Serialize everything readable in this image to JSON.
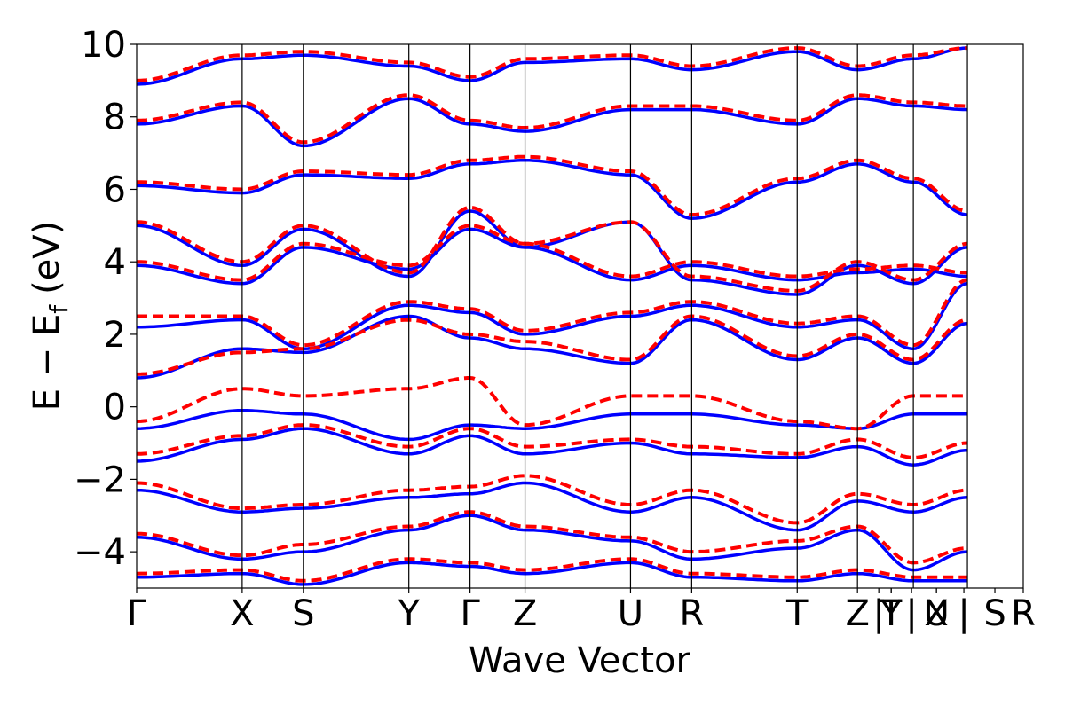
{
  "chart_data": {
    "type": "line",
    "title": "",
    "xlabel": "Wave Vector",
    "ylabel": "E − E_f (eV)",
    "ylabel_main": "E − E",
    "ylabel_sub": "f",
    "ylabel_unit": "(eV)",
    "ylim": [
      -5,
      10
    ],
    "xlim": [
      0,
      1
    ],
    "grid": false,
    "legend": "none",
    "y_ticks": [
      -4,
      -2,
      0,
      2,
      4,
      6,
      8,
      10
    ],
    "y_tick_labels": [
      "−4",
      "−2",
      "0",
      "2",
      "4",
      "6",
      "8",
      "10"
    ],
    "k_points": [
      {
        "label": "Γ",
        "x": 0.0
      },
      {
        "label": "X",
        "x": 0.119
      },
      {
        "label": "S",
        "x": 0.188
      },
      {
        "label": "Y",
        "x": 0.307
      },
      {
        "label": "Γ",
        "x": 0.376
      },
      {
        "label": "Z",
        "x": 0.438
      },
      {
        "label": "U",
        "x": 0.557
      },
      {
        "label": "R",
        "x": 0.626
      },
      {
        "label": "T",
        "x": 0.745
      },
      {
        "label": "Z",
        "x": 0.813
      },
      {
        "label": "|",
        "x": 0.837
      },
      {
        "label": "Y",
        "x": 0.851
      },
      {
        "label": "T",
        "x": 0.851
      },
      {
        "label": "|",
        "x": 0.874
      },
      {
        "label": "U",
        "x": 0.902
      },
      {
        "label": "X",
        "x": 0.902
      },
      {
        "label": "|",
        "x": 0.933
      },
      {
        "label": "S",
        "x": 0.968
      },
      {
        "label": "R",
        "x": 1.0
      }
    ],
    "segment_breaks": [
      0.119,
      0.188,
      0.307,
      0.376,
      0.438,
      0.557,
      0.626,
      0.745,
      0.813,
      0.876,
      0.937
    ],
    "colors": {
      "series_a": "#0000ff",
      "series_b": "#ff0000"
    },
    "series": [
      {
        "style": "solid",
        "color": "#0000ff",
        "nodes": [
          -0.6,
          -0.1,
          -0.2,
          -0.9,
          -0.5,
          -0.6,
          -0.2,
          -0.2,
          -0.5,
          -0.6,
          -0.2,
          -0.2
        ]
      },
      {
        "style": "solid",
        "color": "#0000ff",
        "nodes": [
          0.8,
          1.6,
          1.5,
          2.5,
          1.9,
          1.6,
          1.2,
          2.4,
          1.3,
          1.9,
          1.2,
          2.3
        ]
      },
      {
        "style": "solid",
        "color": "#0000ff",
        "nodes": [
          2.2,
          2.4,
          1.6,
          2.8,
          2.6,
          2.0,
          2.5,
          2.8,
          2.2,
          2.4,
          1.6,
          3.4
        ]
      },
      {
        "style": "solid",
        "color": "#0000ff",
        "nodes": [
          3.9,
          3.4,
          4.4,
          3.8,
          4.9,
          4.4,
          5.1,
          3.5,
          3.1,
          3.9,
          3.4,
          4.4
        ]
      },
      {
        "style": "solid",
        "color": "#0000ff",
        "nodes": [
          5.0,
          3.9,
          4.9,
          3.6,
          5.4,
          4.4,
          3.5,
          3.9,
          3.5,
          3.7,
          3.8,
          3.6
        ]
      },
      {
        "style": "solid",
        "color": "#0000ff",
        "nodes": [
          6.1,
          5.9,
          6.4,
          6.3,
          6.7,
          6.8,
          6.4,
          5.2,
          6.2,
          6.7,
          6.2,
          5.3
        ]
      },
      {
        "style": "solid",
        "color": "#0000ff",
        "nodes": [
          7.8,
          8.3,
          7.2,
          8.5,
          7.8,
          7.6,
          8.2,
          8.2,
          7.8,
          8.5,
          8.3,
          8.2
        ]
      },
      {
        "style": "solid",
        "color": "#0000ff",
        "nodes": [
          8.9,
          9.6,
          9.7,
          9.4,
          9.0,
          9.5,
          9.6,
          9.3,
          9.8,
          9.3,
          9.6,
          9.9
        ]
      },
      {
        "style": "solid",
        "color": "#0000ff",
        "nodes": [
          -1.5,
          -0.9,
          -0.6,
          -1.3,
          -0.8,
          -1.3,
          -1.0,
          -1.3,
          -1.4,
          -1.1,
          -1.6,
          -1.2
        ]
      },
      {
        "style": "solid",
        "color": "#0000ff",
        "nodes": [
          -2.3,
          -2.9,
          -2.8,
          -2.5,
          -2.4,
          -2.1,
          -2.9,
          -2.5,
          -3.4,
          -2.6,
          -2.9,
          -2.5
        ]
      },
      {
        "style": "solid",
        "color": "#0000ff",
        "nodes": [
          -3.6,
          -4.2,
          -4.0,
          -3.4,
          -3.0,
          -3.4,
          -3.7,
          -4.2,
          -3.9,
          -3.4,
          -4.5,
          -4.0
        ]
      },
      {
        "style": "solid",
        "color": "#0000ff",
        "nodes": [
          -4.7,
          -4.6,
          -4.9,
          -4.3,
          -4.4,
          -4.6,
          -4.3,
          -4.7,
          -4.8,
          -4.6,
          -4.8,
          -4.8
        ]
      },
      {
        "style": "dashed",
        "color": "#ff0000",
        "nodes": [
          -0.4,
          0.5,
          0.3,
          0.5,
          0.8,
          -0.5,
          0.3,
          0.3,
          -0.4,
          -0.6,
          0.3,
          0.3
        ]
      },
      {
        "style": "dashed",
        "color": "#ff0000",
        "nodes": [
          0.9,
          1.5,
          1.6,
          2.4,
          2.0,
          1.8,
          1.3,
          2.5,
          1.4,
          2.0,
          1.3,
          2.4
        ]
      },
      {
        "style": "dashed",
        "color": "#ff0000",
        "nodes": [
          2.5,
          2.5,
          1.7,
          2.9,
          2.7,
          2.1,
          2.6,
          2.9,
          2.3,
          2.5,
          1.7,
          3.5
        ]
      },
      {
        "style": "dashed",
        "color": "#ff0000",
        "nodes": [
          4.0,
          3.5,
          4.5,
          3.9,
          5.0,
          4.5,
          5.1,
          3.6,
          3.2,
          4.0,
          3.5,
          4.5
        ]
      },
      {
        "style": "dashed",
        "color": "#ff0000",
        "nodes": [
          5.1,
          4.0,
          5.0,
          3.7,
          5.5,
          4.5,
          3.6,
          4.0,
          3.6,
          3.8,
          3.9,
          3.7
        ]
      },
      {
        "style": "dashed",
        "color": "#ff0000",
        "nodes": [
          6.2,
          6.0,
          6.5,
          6.4,
          6.8,
          6.9,
          6.5,
          5.3,
          6.3,
          6.8,
          6.3,
          5.4
        ]
      },
      {
        "style": "dashed",
        "color": "#ff0000",
        "nodes": [
          7.9,
          8.4,
          7.3,
          8.6,
          7.9,
          7.7,
          8.3,
          8.3,
          7.9,
          8.6,
          8.4,
          8.3
        ]
      },
      {
        "style": "dashed",
        "color": "#ff0000",
        "nodes": [
          9.0,
          9.7,
          9.8,
          9.5,
          9.1,
          9.6,
          9.7,
          9.4,
          9.9,
          9.4,
          9.7,
          9.9
        ]
      },
      {
        "style": "dashed",
        "color": "#ff0000",
        "nodes": [
          -1.3,
          -0.8,
          -0.5,
          -1.1,
          -0.6,
          -1.1,
          -0.9,
          -1.1,
          -1.3,
          -0.9,
          -1.4,
          -1.0
        ]
      },
      {
        "style": "dashed",
        "color": "#ff0000",
        "nodes": [
          -2.1,
          -2.8,
          -2.7,
          -2.3,
          -2.2,
          -1.9,
          -2.7,
          -2.3,
          -3.2,
          -2.4,
          -2.7,
          -2.3
        ]
      },
      {
        "style": "dashed",
        "color": "#ff0000",
        "nodes": [
          -3.5,
          -4.1,
          -3.8,
          -3.3,
          -2.9,
          -3.3,
          -3.6,
          -4.0,
          -3.7,
          -3.3,
          -4.3,
          -3.9
        ]
      },
      {
        "style": "dashed",
        "color": "#ff0000",
        "nodes": [
          -4.6,
          -4.5,
          -4.8,
          -4.2,
          -4.3,
          -4.5,
          -4.2,
          -4.6,
          -4.7,
          -4.5,
          -4.7,
          -4.7
        ]
      }
    ]
  }
}
